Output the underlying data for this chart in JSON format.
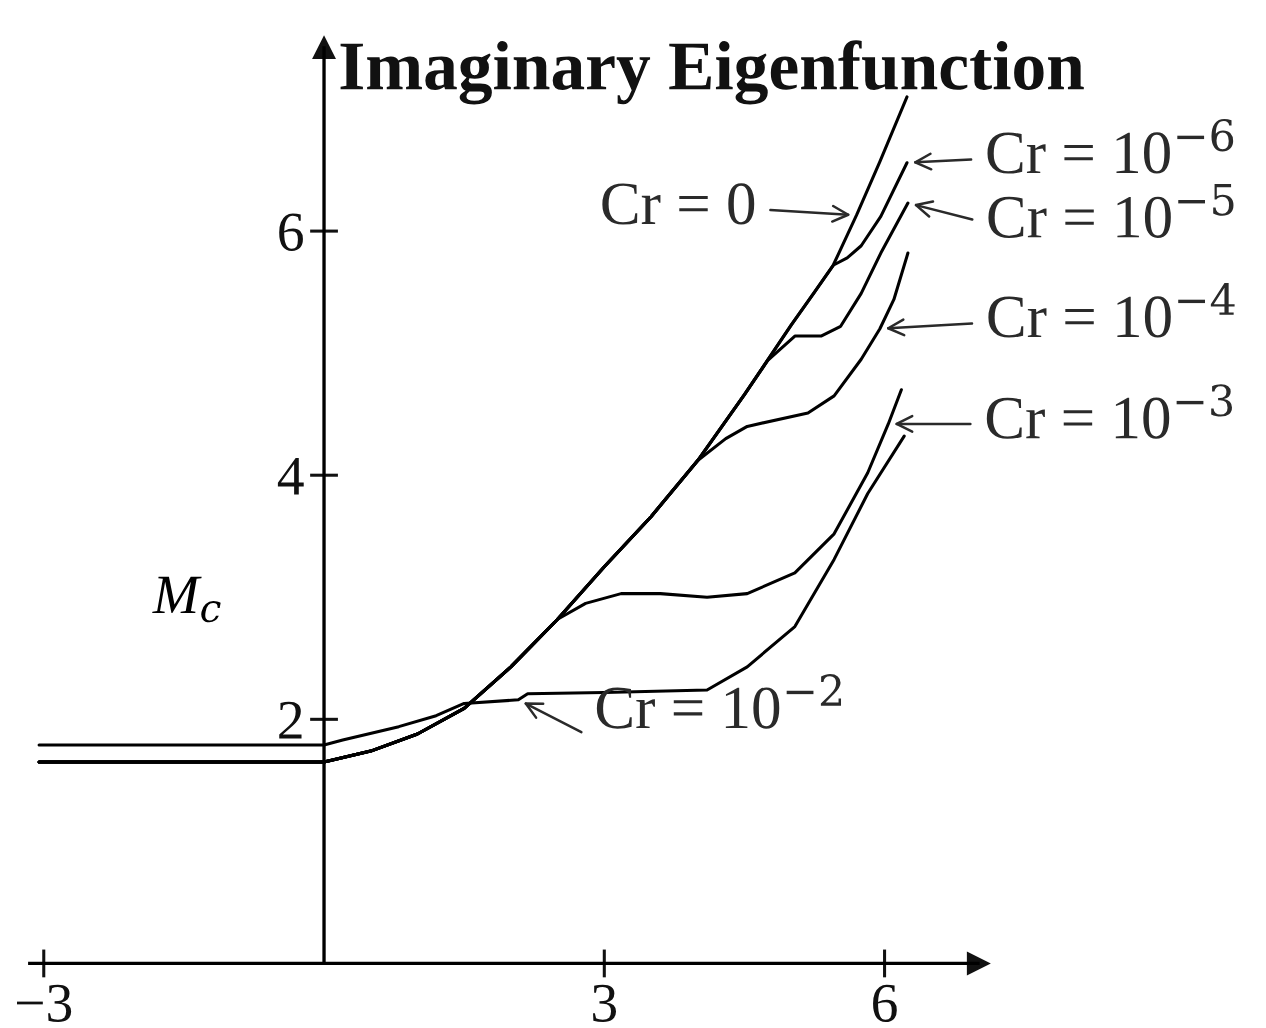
{
  "chart_data": {
    "type": "line",
    "title": "Imaginary Eigenfunction",
    "ylabel": "M$_{c}$",
    "xlim": [
      -3.15,
      7.0
    ],
    "ylim": [
      0,
      7.5
    ],
    "xticks": [
      -3,
      3,
      6
    ],
    "yticks": [
      2,
      4,
      6
    ],
    "line_style": "solid",
    "series": [
      {
        "name": "Cr = 0",
        "color": "#000000",
        "x": [
          -3.05,
          0,
          0.5,
          1.0,
          1.5,
          2.0,
          2.5,
          3.0,
          3.5,
          4.0,
          4.5,
          5.0,
          5.25,
          5.45,
          5.7,
          5.95,
          6.24
        ],
        "values": [
          1.65,
          1.65,
          1.74,
          1.88,
          2.09,
          2.43,
          2.82,
          3.25,
          3.66,
          4.12,
          4.66,
          5.23,
          5.5,
          5.72,
          6.13,
          6.57,
          7.1
        ]
      },
      {
        "name": "Cr = 10$^{−6}$",
        "color": "#000000",
        "x": [
          -3.05,
          0,
          0.5,
          1.0,
          1.5,
          2.0,
          2.5,
          3.0,
          3.5,
          4.0,
          4.5,
          5.0,
          5.25,
          5.45,
          5.6,
          5.75,
          5.96,
          6.24
        ],
        "values": [
          1.65,
          1.65,
          1.74,
          1.88,
          2.09,
          2.43,
          2.82,
          3.25,
          3.66,
          4.12,
          4.66,
          5.23,
          5.5,
          5.72,
          5.78,
          5.88,
          6.12,
          6.56
        ]
      },
      {
        "name": "Cr = 10$^{−5}$",
        "color": "#000000",
        "x": [
          -3.05,
          0,
          0.5,
          1.0,
          1.5,
          2.0,
          2.5,
          3.0,
          3.5,
          4.0,
          4.5,
          4.75,
          5.04,
          5.32,
          5.53,
          5.75,
          5.96,
          6.25
        ],
        "values": [
          1.65,
          1.65,
          1.74,
          1.88,
          2.09,
          2.43,
          2.82,
          3.25,
          3.66,
          4.12,
          4.66,
          4.94,
          5.14,
          5.14,
          5.22,
          5.49,
          5.82,
          6.23
        ]
      },
      {
        "name": "Cr = 10$^{−4}$",
        "color": "#000000",
        "x": [
          -3.05,
          0,
          0.5,
          1.0,
          1.5,
          2.0,
          2.5,
          3.0,
          3.5,
          4.0,
          4.3,
          4.53,
          5.18,
          5.46,
          5.75,
          5.95,
          6.1,
          6.25
        ],
        "values": [
          1.65,
          1.65,
          1.74,
          1.88,
          2.09,
          2.43,
          2.82,
          3.25,
          3.66,
          4.12,
          4.3,
          4.4,
          4.51,
          4.65,
          4.95,
          5.2,
          5.44,
          5.82
        ]
      },
      {
        "name": "Cr = 10$^{−3}$",
        "color": "#000000",
        "x": [
          -3.05,
          0,
          0.5,
          1.0,
          1.5,
          2.0,
          2.5,
          2.8,
          3.18,
          3.6,
          4.1,
          4.53,
          5.04,
          5.46,
          5.82,
          6.04,
          6.18
        ],
        "values": [
          1.65,
          1.65,
          1.74,
          1.88,
          2.09,
          2.43,
          2.82,
          2.95,
          3.03,
          3.03,
          3.0,
          3.03,
          3.2,
          3.52,
          4.02,
          4.42,
          4.7
        ]
      },
      {
        "name": "Cr = 10$^{−2}$",
        "color": "#000000",
        "x": [
          -3.05,
          0,
          0.2,
          0.8,
          1.2,
          1.5,
          2.08,
          2.18,
          3.0,
          4.1,
          4.53,
          5.04,
          5.46,
          5.82,
          6.21
        ],
        "values": [
          1.79,
          1.79,
          1.83,
          1.94,
          2.03,
          2.13,
          2.16,
          2.21,
          2.22,
          2.24,
          2.43,
          2.76,
          3.31,
          3.85,
          4.32
        ]
      }
    ]
  }
}
